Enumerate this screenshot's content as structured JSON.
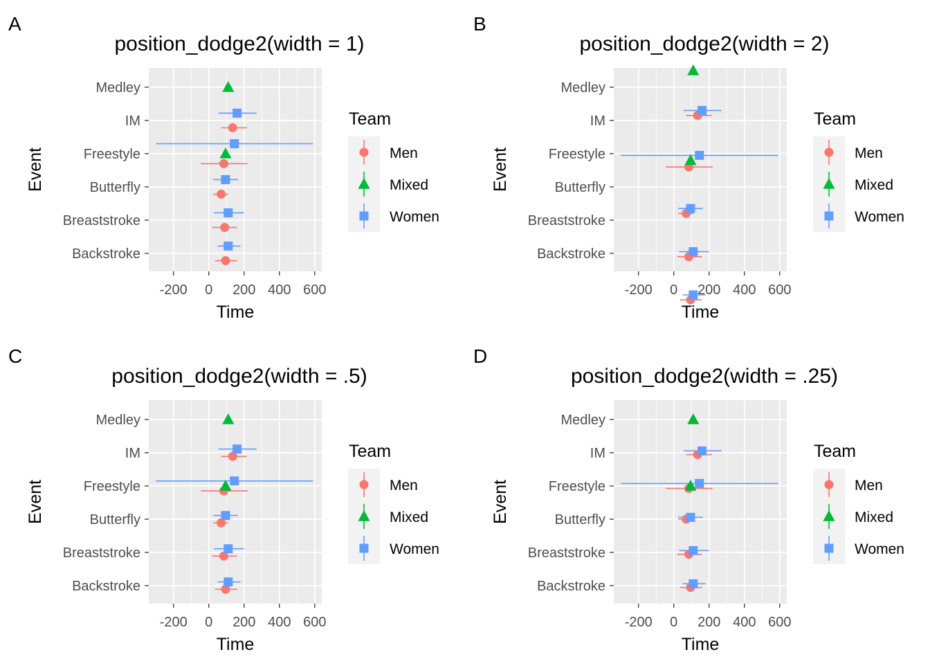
{
  "figure": {
    "legend_title": "Team",
    "teams": [
      {
        "name": "Men",
        "color": "#F8766D",
        "shape": "circle"
      },
      {
        "name": "Mixed",
        "color": "#00BA38",
        "shape": "triangle"
      },
      {
        "name": "Women",
        "color": "#619CFF",
        "shape": "square"
      }
    ]
  },
  "chart_data": [
    {
      "panel": "A",
      "type": "scatter",
      "title": "position_dodge2(width = 1)",
      "xlabel": "Time",
      "ylabel": "Event",
      "xlim": [
        -340,
        640
      ],
      "x_ticks": [
        -200,
        0,
        200,
        400,
        600
      ],
      "categories": [
        "Backstroke",
        "Breaststroke",
        "Butterfly",
        "Freestyle",
        "IM",
        "Medley"
      ],
      "series": [
        {
          "name": "Men",
          "points": [
            {
              "cat": "Backstroke",
              "x": 95,
              "xmin": 35,
              "xmax": 160,
              "offset": -0.22
            },
            {
              "cat": "Breaststroke",
              "x": 90,
              "xmin": 20,
              "xmax": 160,
              "offset": -0.22
            },
            {
              "cat": "Butterfly",
              "x": 70,
              "xmin": 25,
              "xmax": 110,
              "offset": -0.22
            },
            {
              "cat": "Freestyle",
              "x": 85,
              "xmin": -45,
              "xmax": 220,
              "offset": -0.3
            },
            {
              "cat": "IM",
              "x": 135,
              "xmin": 70,
              "xmax": 215,
              "offset": -0.22
            }
          ]
        },
        {
          "name": "Mixed",
          "points": [
            {
              "cat": "Freestyle",
              "x": 95,
              "xmin": 95,
              "xmax": 95,
              "offset": 0.0
            },
            {
              "cat": "Medley",
              "x": 110,
              "xmin": 110,
              "xmax": 110,
              "offset": 0.0
            }
          ]
        },
        {
          "name": "Women",
          "points": [
            {
              "cat": "Backstroke",
              "x": 110,
              "xmin": 50,
              "xmax": 180,
              "offset": 0.22
            },
            {
              "cat": "Breaststroke",
              "x": 110,
              "xmin": 30,
              "xmax": 200,
              "offset": 0.22
            },
            {
              "cat": "Butterfly",
              "x": 95,
              "xmin": 25,
              "xmax": 165,
              "offset": 0.22
            },
            {
              "cat": "Freestyle",
              "x": 145,
              "xmin": -300,
              "xmax": 590,
              "offset": 0.3
            },
            {
              "cat": "IM",
              "x": 160,
              "xmin": 55,
              "xmax": 270,
              "offset": 0.22
            }
          ]
        }
      ]
    },
    {
      "panel": "B",
      "type": "scatter",
      "title": "position_dodge2(width = 2)",
      "xlabel": "Time",
      "ylabel": "Event",
      "xlim": [
        -340,
        640
      ],
      "x_ticks": [
        -200,
        0,
        200,
        400,
        600
      ],
      "categories": [
        "Backstroke",
        "Breaststroke",
        "Butterfly",
        "Freestyle",
        "IM",
        "Medley"
      ],
      "series": [
        {
          "name": "Men",
          "points": [
            {
              "cat": "Backstroke",
              "x": 95,
              "xmin": 35,
              "xmax": 160,
              "offset": -1.4
            },
            {
              "cat": "Breaststroke",
              "x": 85,
              "xmin": 20,
              "xmax": 160,
              "offset": -1.1
            },
            {
              "cat": "Butterfly",
              "x": 70,
              "xmin": 25,
              "xmax": 110,
              "offset": -0.8
            },
            {
              "cat": "Freestyle",
              "x": 85,
              "xmin": -45,
              "xmax": 220,
              "offset": -0.4
            },
            {
              "cat": "IM",
              "x": 135,
              "xmin": 70,
              "xmax": 215,
              "offset": 0.15
            }
          ]
        },
        {
          "name": "Mixed",
          "points": [
            {
              "cat": "Freestyle",
              "x": 95,
              "xmin": 95,
              "xmax": 95,
              "offset": -0.2
            },
            {
              "cat": "Medley",
              "x": 110,
              "xmin": 110,
              "xmax": 110,
              "offset": 0.5
            }
          ]
        },
        {
          "name": "Women",
          "points": [
            {
              "cat": "Backstroke",
              "x": 110,
              "xmin": 50,
              "xmax": 180,
              "offset": -1.25
            },
            {
              "cat": "Breaststroke",
              "x": 110,
              "xmin": 30,
              "xmax": 200,
              "offset": -0.95
            },
            {
              "cat": "Butterfly",
              "x": 95,
              "xmin": 25,
              "xmax": 165,
              "offset": -0.65
            },
            {
              "cat": "Freestyle",
              "x": 145,
              "xmin": -300,
              "xmax": 590,
              "offset": -0.05
            },
            {
              "cat": "IM",
              "x": 160,
              "xmin": 55,
              "xmax": 270,
              "offset": 0.3
            }
          ]
        }
      ]
    },
    {
      "panel": "C",
      "type": "scatter",
      "title": "position_dodge2(width = .5)",
      "xlabel": "Time",
      "ylabel": "Event",
      "xlim": [
        -340,
        640
      ],
      "x_ticks": [
        -200,
        0,
        200,
        400,
        600
      ],
      "categories": [
        "Backstroke",
        "Breaststroke",
        "Butterfly",
        "Freestyle",
        "IM",
        "Medley"
      ],
      "series": [
        {
          "name": "Men",
          "points": [
            {
              "cat": "Backstroke",
              "x": 95,
              "xmin": 35,
              "xmax": 160,
              "offset": -0.11
            },
            {
              "cat": "Breaststroke",
              "x": 85,
              "xmin": 20,
              "xmax": 160,
              "offset": -0.11
            },
            {
              "cat": "Butterfly",
              "x": 70,
              "xmin": 25,
              "xmax": 110,
              "offset": -0.11
            },
            {
              "cat": "Freestyle",
              "x": 85,
              "xmin": -45,
              "xmax": 220,
              "offset": -0.15
            },
            {
              "cat": "IM",
              "x": 135,
              "xmin": 70,
              "xmax": 215,
              "offset": -0.11
            }
          ]
        },
        {
          "name": "Mixed",
          "points": [
            {
              "cat": "Freestyle",
              "x": 95,
              "xmin": 95,
              "xmax": 95,
              "offset": 0.0
            },
            {
              "cat": "Medley",
              "x": 110,
              "xmin": 110,
              "xmax": 110,
              "offset": 0.0
            }
          ]
        },
        {
          "name": "Women",
          "points": [
            {
              "cat": "Backstroke",
              "x": 110,
              "xmin": 50,
              "xmax": 180,
              "offset": 0.11
            },
            {
              "cat": "Breaststroke",
              "x": 110,
              "xmin": 30,
              "xmax": 200,
              "offset": 0.11
            },
            {
              "cat": "Butterfly",
              "x": 95,
              "xmin": 25,
              "xmax": 165,
              "offset": 0.11
            },
            {
              "cat": "Freestyle",
              "x": 145,
              "xmin": -300,
              "xmax": 590,
              "offset": 0.15
            },
            {
              "cat": "IM",
              "x": 160,
              "xmin": 55,
              "xmax": 270,
              "offset": 0.11
            }
          ]
        }
      ]
    },
    {
      "panel": "D",
      "type": "scatter",
      "title": "position_dodge2(width = .25)",
      "xlabel": "Time",
      "ylabel": "Event",
      "xlim": [
        -340,
        640
      ],
      "x_ticks": [
        -200,
        0,
        200,
        400,
        600
      ],
      "categories": [
        "Backstroke",
        "Breaststroke",
        "Butterfly",
        "Freestyle",
        "IM",
        "Medley"
      ],
      "series": [
        {
          "name": "Men",
          "points": [
            {
              "cat": "Backstroke",
              "x": 95,
              "xmin": 35,
              "xmax": 160,
              "offset": -0.055
            },
            {
              "cat": "Breaststroke",
              "x": 85,
              "xmin": 20,
              "xmax": 160,
              "offset": -0.055
            },
            {
              "cat": "Butterfly",
              "x": 70,
              "xmin": 25,
              "xmax": 110,
              "offset": 0.0
            },
            {
              "cat": "Freestyle",
              "x": 85,
              "xmin": -45,
              "xmax": 220,
              "offset": -0.075
            },
            {
              "cat": "IM",
              "x": 135,
              "xmin": 70,
              "xmax": 215,
              "offset": -0.055
            }
          ]
        },
        {
          "name": "Mixed",
          "points": [
            {
              "cat": "Freestyle",
              "x": 95,
              "xmin": 95,
              "xmax": 95,
              "offset": 0.0
            },
            {
              "cat": "Medley",
              "x": 110,
              "xmin": 110,
              "xmax": 110,
              "offset": 0.0
            }
          ]
        },
        {
          "name": "Women",
          "points": [
            {
              "cat": "Backstroke",
              "x": 110,
              "xmin": 50,
              "xmax": 180,
              "offset": 0.055
            },
            {
              "cat": "Breaststroke",
              "x": 110,
              "xmin": 30,
              "xmax": 200,
              "offset": 0.055
            },
            {
              "cat": "Butterfly",
              "x": 95,
              "xmin": 25,
              "xmax": 165,
              "offset": 0.055
            },
            {
              "cat": "Freestyle",
              "x": 145,
              "xmin": -300,
              "xmax": 590,
              "offset": 0.075
            },
            {
              "cat": "IM",
              "x": 160,
              "xmin": 55,
              "xmax": 270,
              "offset": 0.055
            }
          ]
        }
      ]
    }
  ]
}
